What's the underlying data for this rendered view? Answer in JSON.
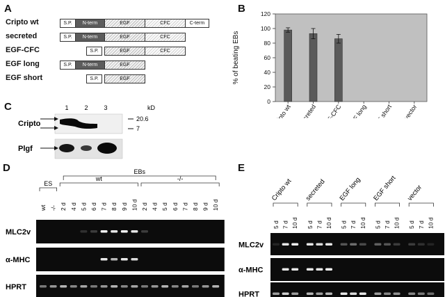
{
  "figure": {
    "panels": {
      "a": "A",
      "b": "B",
      "c": "C",
      "d": "D",
      "e": "E"
    },
    "constructs": [
      {
        "name": "Cripto wt",
        "domains": [
          "S.P.",
          "N-term",
          "EGF",
          "CFC",
          "C-term"
        ]
      },
      {
        "name": "secreted",
        "domains": [
          "S.P.",
          "N-term",
          "EGF",
          "CFC"
        ]
      },
      {
        "name": "EGF-CFC",
        "domains": [
          "S.P.",
          "EGF",
          "CFC"
        ]
      },
      {
        "name": "EGF long",
        "domains": [
          "S.P.",
          "N-term",
          "EGF"
        ]
      },
      {
        "name": "EGF short",
        "domains": [
          "S.P.",
          "EGF"
        ]
      }
    ],
    "western": {
      "lanes": [
        "1",
        "2",
        "3"
      ],
      "unit": "kD",
      "markers": [
        "20.6",
        "7"
      ],
      "rows": [
        "Cripto",
        "Plgf"
      ]
    },
    "rtpcr_d": {
      "groups": {
        "es": "ES",
        "ebs": "EBs",
        "wt": "wt",
        "ko": "-/-"
      },
      "es_lanes": [
        "wt",
        "-/-"
      ],
      "wt_lanes": [
        "2 d",
        "4 d",
        "5 d",
        "6 d",
        "7 d",
        "8 d",
        "9 d",
        "10 d"
      ],
      "ko_lanes": [
        "2 d",
        "4 d",
        "5 d",
        "6 d",
        "7 d",
        "8 d",
        "9 d",
        "10 d"
      ],
      "genes": [
        "MLC2v",
        "α-MHC",
        "HPRT"
      ]
    },
    "rtpcr_e": {
      "groups": [
        "Cripto wt",
        "secreted",
        "EGF long",
        "EGF short",
        "vector"
      ],
      "lanes": [
        "5 d",
        "7 d",
        "10 d"
      ],
      "genes": [
        "MLC2v",
        "α-MHC",
        "HPRT"
      ]
    }
  },
  "chart_data": {
    "type": "bar",
    "categories": [
      "Cripto wt",
      "secreted",
      "EGF-CFC",
      "EGF long",
      "EGF short",
      "vector"
    ],
    "values": [
      98,
      93,
      86,
      0,
      0,
      0
    ],
    "errors": [
      3,
      7,
      6,
      0,
      0,
      0
    ],
    "xlabel": "",
    "ylabel": "% of beating EBs",
    "ylim": [
      0,
      120
    ],
    "yticks": [
      0,
      20,
      40,
      60,
      80,
      100,
      120
    ],
    "bar_color": "#5a5a5a",
    "plot_background": "#c0c0c0",
    "grid": false,
    "legend": "none"
  }
}
